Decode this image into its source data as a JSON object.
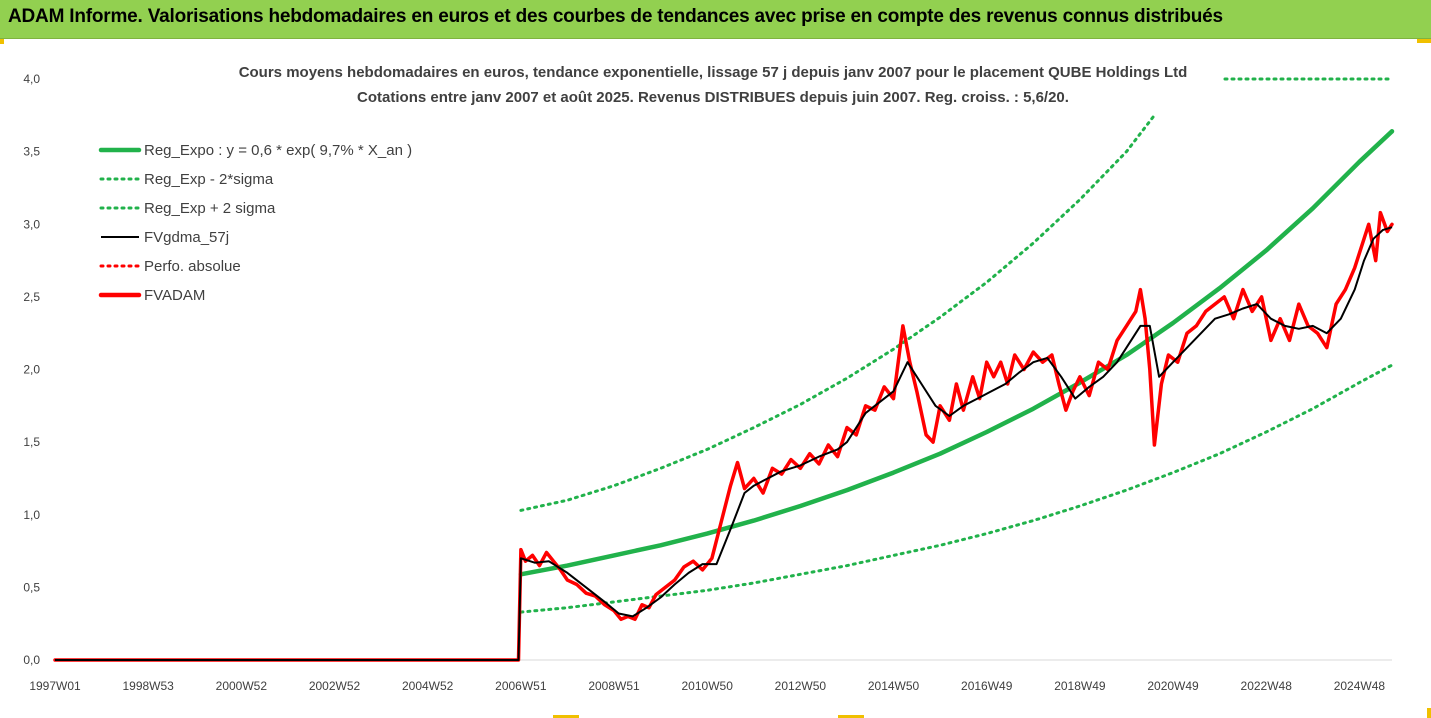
{
  "banner": {
    "title": "ADAM Informe. Valorisations hebdomadaires en euros et des courbes de tendances avec prise en compte des revenus connus distribués"
  },
  "chart_data": {
    "type": "line",
    "title_line1": "Cours moyens hebdomadaires en euros, tendance exponentielle, lissage 57 j depuis janv 2007 pour le placement QUBE Holdings Ltd",
    "title_line2": "Cotations entre janv 2007 et août 2025. Revenus DISTRIBUES depuis juin 2007. Reg. croiss. : 5,6/20.",
    "x_range": [
      1997.0,
      2025.7
    ],
    "x_tick_labels": [
      "1997W01",
      "1998W53",
      "2000W52",
      "2002W52",
      "2004W52",
      "2006W51",
      "2008W51",
      "2010W50",
      "2012W50",
      "2014W50",
      "2016W49",
      "2018W49",
      "2020W49",
      "2022W48",
      "2024W48"
    ],
    "x_tick_years": [
      1997.0,
      1999.0,
      2001.0,
      2003.0,
      2005.0,
      2007.0,
      2009.0,
      2011.0,
      2013.0,
      2015.0,
      2017.0,
      2019.0,
      2021.0,
      2023.0,
      2025.0
    ],
    "y_range": [
      0,
      4.0
    ],
    "y_tick_labels": [
      "0,0",
      "0,5",
      "1,0",
      "1,5",
      "2,0",
      "2,5",
      "3,0",
      "3,5",
      "4,0"
    ],
    "y_ticks": [
      0,
      0.5,
      1.0,
      1.5,
      2.0,
      2.5,
      3.0,
      3.5,
      4.0
    ],
    "legend_position": "top-left",
    "series": [
      {
        "name": "Reg_Expo : y = 0,6 * exp( 9,7% *  X_an )",
        "color": "#21b24b",
        "style": "solid-thick",
        "points": [
          [
            2007.0,
            0.59
          ],
          [
            2008.0,
            0.65
          ],
          [
            2009.0,
            0.72
          ],
          [
            2010.0,
            0.79
          ],
          [
            2011.0,
            0.87
          ],
          [
            2012.0,
            0.96
          ],
          [
            2013.0,
            1.06
          ],
          [
            2014.0,
            1.17
          ],
          [
            2015.0,
            1.29
          ],
          [
            2016.0,
            1.42
          ],
          [
            2017.0,
            1.57
          ],
          [
            2018.0,
            1.73
          ],
          [
            2019.0,
            1.91
          ],
          [
            2020.0,
            2.1
          ],
          [
            2021.0,
            2.32
          ],
          [
            2022.0,
            2.56
          ],
          [
            2023.0,
            2.82
          ],
          [
            2024.0,
            3.11
          ],
          [
            2025.0,
            3.43
          ],
          [
            2025.7,
            3.64
          ]
        ]
      },
      {
        "name": "Reg_Exp - 2*sigma",
        "color": "#21b24b",
        "style": "dotted",
        "points": [
          [
            2007.0,
            0.33
          ],
          [
            2008.0,
            0.36
          ],
          [
            2009.0,
            0.4
          ],
          [
            2010.0,
            0.44
          ],
          [
            2011.0,
            0.48
          ],
          [
            2012.0,
            0.53
          ],
          [
            2013.0,
            0.59
          ],
          [
            2014.0,
            0.65
          ],
          [
            2015.0,
            0.72
          ],
          [
            2016.0,
            0.79
          ],
          [
            2017.0,
            0.87
          ],
          [
            2018.0,
            0.96
          ],
          [
            2019.0,
            1.06
          ],
          [
            2020.0,
            1.17
          ],
          [
            2021.0,
            1.29
          ],
          [
            2022.0,
            1.42
          ],
          [
            2023.0,
            1.57
          ],
          [
            2024.0,
            1.73
          ],
          [
            2025.0,
            1.91
          ],
          [
            2025.7,
            2.03
          ]
        ]
      },
      {
        "name": "Reg_Exp + 2 sigma",
        "color": "#21b24b",
        "style": "dotted",
        "points": [
          [
            2007.0,
            1.03
          ],
          [
            2008.0,
            1.1
          ],
          [
            2009.0,
            1.2
          ],
          [
            2010.0,
            1.32
          ],
          [
            2011.0,
            1.45
          ],
          [
            2012.0,
            1.6
          ],
          [
            2013.0,
            1.76
          ],
          [
            2014.0,
            1.94
          ],
          [
            2015.0,
            2.14
          ],
          [
            2016.0,
            2.36
          ],
          [
            2017.0,
            2.6
          ],
          [
            2018.0,
            2.87
          ],
          [
            2019.0,
            3.17
          ],
          [
            2020.0,
            3.5
          ],
          [
            2020.6,
            3.75
          ]
        ]
      },
      {
        "name": "FVgdma_57j",
        "color": "#000000",
        "style": "solid",
        "points": [
          [
            1997.0,
            0.0
          ],
          [
            2006.95,
            0.0
          ],
          [
            2007.0,
            0.7
          ],
          [
            2007.3,
            0.67
          ],
          [
            2007.6,
            0.68
          ],
          [
            2008.0,
            0.6
          ],
          [
            2008.4,
            0.5
          ],
          [
            2008.8,
            0.4
          ],
          [
            2009.1,
            0.32
          ],
          [
            2009.4,
            0.3
          ],
          [
            2009.7,
            0.36
          ],
          [
            2010.0,
            0.43
          ],
          [
            2010.3,
            0.52
          ],
          [
            2010.6,
            0.6
          ],
          [
            2010.9,
            0.66
          ],
          [
            2011.2,
            0.66
          ],
          [
            2011.5,
            0.9
          ],
          [
            2011.8,
            1.15
          ],
          [
            2012.0,
            1.2
          ],
          [
            2012.3,
            1.25
          ],
          [
            2012.6,
            1.3
          ],
          [
            2013.0,
            1.34
          ],
          [
            2013.4,
            1.4
          ],
          [
            2013.8,
            1.45
          ],
          [
            2014.0,
            1.5
          ],
          [
            2014.4,
            1.7
          ],
          [
            2014.8,
            1.8
          ],
          [
            2015.0,
            1.85
          ],
          [
            2015.3,
            2.05
          ],
          [
            2015.6,
            1.9
          ],
          [
            2015.9,
            1.75
          ],
          [
            2016.2,
            1.68
          ],
          [
            2016.5,
            1.75
          ],
          [
            2016.8,
            1.8
          ],
          [
            2017.1,
            1.85
          ],
          [
            2017.4,
            1.9
          ],
          [
            2017.7,
            1.98
          ],
          [
            2018.0,
            2.05
          ],
          [
            2018.3,
            2.08
          ],
          [
            2018.6,
            1.95
          ],
          [
            2018.9,
            1.8
          ],
          [
            2019.2,
            1.88
          ],
          [
            2019.5,
            1.95
          ],
          [
            2019.8,
            2.05
          ],
          [
            2020.1,
            2.2
          ],
          [
            2020.3,
            2.3
          ],
          [
            2020.5,
            2.3
          ],
          [
            2020.7,
            1.95
          ],
          [
            2021.0,
            2.05
          ],
          [
            2021.3,
            2.15
          ],
          [
            2021.6,
            2.25
          ],
          [
            2021.9,
            2.35
          ],
          [
            2022.2,
            2.38
          ],
          [
            2022.5,
            2.42
          ],
          [
            2022.8,
            2.45
          ],
          [
            2023.1,
            2.35
          ],
          [
            2023.4,
            2.3
          ],
          [
            2023.7,
            2.28
          ],
          [
            2024.0,
            2.3
          ],
          [
            2024.3,
            2.25
          ],
          [
            2024.6,
            2.35
          ],
          [
            2024.9,
            2.55
          ],
          [
            2025.1,
            2.75
          ],
          [
            2025.3,
            2.9
          ],
          [
            2025.5,
            2.96
          ],
          [
            2025.7,
            2.98
          ]
        ]
      },
      {
        "name": "Perfo. absolue",
        "color": "#ff0000",
        "style": "dotted",
        "points": []
      },
      {
        "name": "FVADAM",
        "color": "#ff0000",
        "style": "solid-thick",
        "points": [
          [
            1997.0,
            0.0
          ],
          [
            2006.95,
            0.0
          ],
          [
            2007.0,
            0.76
          ],
          [
            2007.1,
            0.68
          ],
          [
            2007.25,
            0.72
          ],
          [
            2007.4,
            0.65
          ],
          [
            2007.55,
            0.74
          ],
          [
            2007.7,
            0.68
          ],
          [
            2007.85,
            0.62
          ],
          [
            2008.0,
            0.55
          ],
          [
            2008.2,
            0.52
          ],
          [
            2008.4,
            0.46
          ],
          [
            2008.6,
            0.44
          ],
          [
            2008.8,
            0.38
          ],
          [
            2009.0,
            0.34
          ],
          [
            2009.15,
            0.28
          ],
          [
            2009.3,
            0.3
          ],
          [
            2009.45,
            0.28
          ],
          [
            2009.6,
            0.38
          ],
          [
            2009.75,
            0.36
          ],
          [
            2009.9,
            0.45
          ],
          [
            2010.1,
            0.5
          ],
          [
            2010.3,
            0.55
          ],
          [
            2010.5,
            0.64
          ],
          [
            2010.7,
            0.68
          ],
          [
            2010.9,
            0.62
          ],
          [
            2011.1,
            0.7
          ],
          [
            2011.3,
            0.95
          ],
          [
            2011.5,
            1.2
          ],
          [
            2011.65,
            1.36
          ],
          [
            2011.8,
            1.18
          ],
          [
            2012.0,
            1.25
          ],
          [
            2012.2,
            1.15
          ],
          [
            2012.4,
            1.32
          ],
          [
            2012.6,
            1.28
          ],
          [
            2012.8,
            1.38
          ],
          [
            2013.0,
            1.32
          ],
          [
            2013.2,
            1.42
          ],
          [
            2013.4,
            1.35
          ],
          [
            2013.6,
            1.48
          ],
          [
            2013.8,
            1.4
          ],
          [
            2014.0,
            1.6
          ],
          [
            2014.2,
            1.55
          ],
          [
            2014.4,
            1.75
          ],
          [
            2014.6,
            1.72
          ],
          [
            2014.8,
            1.88
          ],
          [
            2015.0,
            1.8
          ],
          [
            2015.2,
            2.3
          ],
          [
            2015.35,
            2.05
          ],
          [
            2015.5,
            1.85
          ],
          [
            2015.7,
            1.55
          ],
          [
            2015.85,
            1.5
          ],
          [
            2016.0,
            1.75
          ],
          [
            2016.2,
            1.65
          ],
          [
            2016.35,
            1.9
          ],
          [
            2016.5,
            1.72
          ],
          [
            2016.7,
            1.95
          ],
          [
            2016.85,
            1.8
          ],
          [
            2017.0,
            2.05
          ],
          [
            2017.15,
            1.95
          ],
          [
            2017.3,
            2.05
          ],
          [
            2017.45,
            1.9
          ],
          [
            2017.6,
            2.1
          ],
          [
            2017.8,
            2.0
          ],
          [
            2018.0,
            2.12
          ],
          [
            2018.2,
            2.05
          ],
          [
            2018.4,
            2.1
          ],
          [
            2018.55,
            1.9
          ],
          [
            2018.7,
            1.72
          ],
          [
            2018.85,
            1.85
          ],
          [
            2019.0,
            1.95
          ],
          [
            2019.2,
            1.82
          ],
          [
            2019.4,
            2.05
          ],
          [
            2019.6,
            2.0
          ],
          [
            2019.8,
            2.2
          ],
          [
            2020.0,
            2.3
          ],
          [
            2020.2,
            2.4
          ],
          [
            2020.3,
            2.55
          ],
          [
            2020.4,
            2.35
          ],
          [
            2020.5,
            2.0
          ],
          [
            2020.6,
            1.48
          ],
          [
            2020.75,
            1.9
          ],
          [
            2020.9,
            2.1
          ],
          [
            2021.1,
            2.05
          ],
          [
            2021.3,
            2.25
          ],
          [
            2021.5,
            2.3
          ],
          [
            2021.7,
            2.4
          ],
          [
            2021.9,
            2.45
          ],
          [
            2022.1,
            2.5
          ],
          [
            2022.3,
            2.35
          ],
          [
            2022.5,
            2.55
          ],
          [
            2022.7,
            2.4
          ],
          [
            2022.9,
            2.5
          ],
          [
            2023.1,
            2.2
          ],
          [
            2023.3,
            2.35
          ],
          [
            2023.5,
            2.2
          ],
          [
            2023.7,
            2.45
          ],
          [
            2023.9,
            2.3
          ],
          [
            2024.1,
            2.25
          ],
          [
            2024.3,
            2.15
          ],
          [
            2024.5,
            2.45
          ],
          [
            2024.7,
            2.55
          ],
          [
            2024.9,
            2.7
          ],
          [
            2025.05,
            2.85
          ],
          [
            2025.2,
            3.0
          ],
          [
            2025.35,
            2.75
          ],
          [
            2025.45,
            3.08
          ],
          [
            2025.6,
            2.95
          ],
          [
            2025.7,
            3.0
          ]
        ]
      }
    ]
  }
}
